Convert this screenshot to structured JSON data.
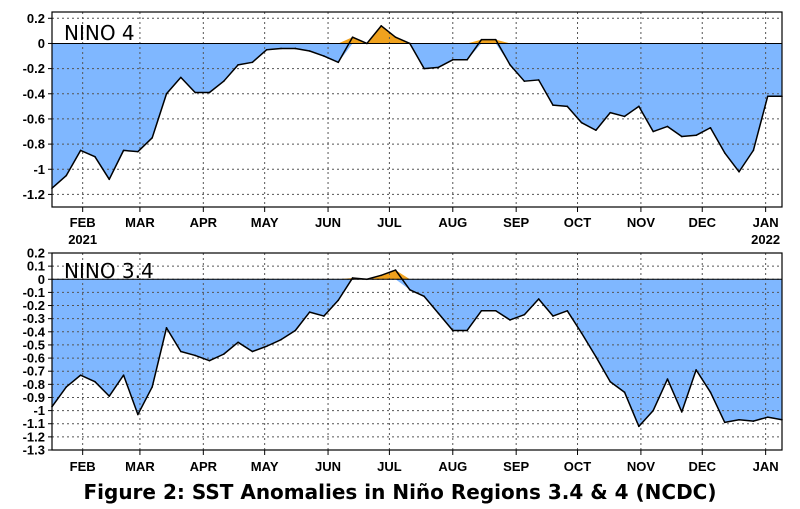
{
  "caption": "Figure 2: SST Anomalies in Niño Regions 3.4 & 4 (NCDC)",
  "colors": {
    "negative_fill": "#7fb7ff",
    "positive_fill": "#f0a21e",
    "line": "#000000",
    "grid": "#555555"
  },
  "chart_data": [
    {
      "type": "area",
      "title": "NINO 4",
      "xlabel": "",
      "ylabel": "",
      "x_ticks": [
        "FEB",
        "MAR",
        "APR",
        "MAY",
        "JUN",
        "JUL",
        "AUG",
        "SEP",
        "OCT",
        "NOV",
        "DEC",
        "JAN"
      ],
      "x_tick_years": {
        "FEB": "2021",
        "JAN": "2022"
      },
      "y_ticks": [
        "0.2",
        "0",
        "-0.2",
        "-0.4",
        "-0.6",
        "-0.8",
        "-1",
        "-1.2"
      ],
      "ylim": [
        -1.3,
        0.25
      ],
      "grid": true,
      "x": [
        "2021-01-17",
        "2021-01-24",
        "2021-01-31",
        "2021-02-07",
        "2021-02-14",
        "2021-02-21",
        "2021-02-28",
        "2021-03-07",
        "2021-03-14",
        "2021-03-21",
        "2021-03-28",
        "2021-04-04",
        "2021-04-11",
        "2021-04-18",
        "2021-04-25",
        "2021-05-02",
        "2021-05-09",
        "2021-05-16",
        "2021-05-23",
        "2021-05-30",
        "2021-06-06",
        "2021-06-13",
        "2021-06-20",
        "2021-06-27",
        "2021-07-04",
        "2021-07-11",
        "2021-07-18",
        "2021-07-25",
        "2021-08-01",
        "2021-08-08",
        "2021-08-15",
        "2021-08-22",
        "2021-08-29",
        "2021-09-05",
        "2021-09-12",
        "2021-09-19",
        "2021-09-26",
        "2021-10-03",
        "2021-10-10",
        "2021-10-17",
        "2021-10-24",
        "2021-10-31",
        "2021-11-07",
        "2021-11-14",
        "2021-11-21",
        "2021-11-28",
        "2021-12-05",
        "2021-12-12",
        "2021-12-19",
        "2021-12-26",
        "2022-01-02",
        "2022-01-09"
      ],
      "values": [
        -1.15,
        -1.05,
        -0.85,
        -0.9,
        -1.08,
        -0.85,
        -0.86,
        -0.75,
        -0.4,
        -0.27,
        -0.39,
        -0.39,
        -0.3,
        -0.17,
        -0.15,
        -0.05,
        -0.04,
        -0.04,
        -0.06,
        -0.1,
        -0.15,
        0.05,
        0.0,
        0.14,
        0.05,
        0.0,
        -0.2,
        -0.19,
        -0.13,
        -0.13,
        0.03,
        0.03,
        -0.17,
        -0.3,
        -0.29,
        -0.49,
        -0.5,
        -0.63,
        -0.69,
        -0.55,
        -0.58,
        -0.5,
        -0.7,
        -0.66,
        -0.74,
        -0.73,
        -0.67,
        -0.87,
        -1.02,
        -0.85,
        -0.42,
        -0.42
      ]
    },
    {
      "type": "area",
      "title": "NINO 3.4",
      "xlabel": "",
      "ylabel": "",
      "x_ticks": [
        "FEB",
        "MAR",
        "APR",
        "MAY",
        "JUN",
        "JUL",
        "AUG",
        "SEP",
        "OCT",
        "NOV",
        "DEC",
        "JAN"
      ],
      "y_ticks": [
        "0.2",
        "0.1",
        "0",
        "-0.1",
        "-0.2",
        "-0.3",
        "-0.4",
        "-0.5",
        "-0.6",
        "-0.7",
        "-0.8",
        "-0.9",
        "-1",
        "-1.1",
        "-1.2",
        "-1.3"
      ],
      "ylim": [
        -1.3,
        0.2
      ],
      "grid": true,
      "x": [
        "2021-01-17",
        "2021-01-24",
        "2021-01-31",
        "2021-02-07",
        "2021-02-14",
        "2021-02-21",
        "2021-02-28",
        "2021-03-07",
        "2021-03-14",
        "2021-03-21",
        "2021-03-28",
        "2021-04-04",
        "2021-04-11",
        "2021-04-18",
        "2021-04-25",
        "2021-05-02",
        "2021-05-09",
        "2021-05-16",
        "2021-05-23",
        "2021-05-30",
        "2021-06-06",
        "2021-06-13",
        "2021-06-20",
        "2021-06-27",
        "2021-07-04",
        "2021-07-11",
        "2021-07-18",
        "2021-07-25",
        "2021-08-01",
        "2021-08-08",
        "2021-08-15",
        "2021-08-22",
        "2021-08-29",
        "2021-09-05",
        "2021-09-12",
        "2021-09-19",
        "2021-09-26",
        "2021-10-03",
        "2021-10-10",
        "2021-10-17",
        "2021-10-24",
        "2021-10-31",
        "2021-11-07",
        "2021-11-14",
        "2021-11-21",
        "2021-11-28",
        "2021-12-05",
        "2021-12-12",
        "2021-12-19",
        "2021-12-26",
        "2022-01-02",
        "2022-01-09"
      ],
      "values": [
        -0.97,
        -0.82,
        -0.73,
        -0.78,
        -0.89,
        -0.73,
        -1.03,
        -0.82,
        -0.37,
        -0.55,
        -0.58,
        -0.62,
        -0.57,
        -0.48,
        -0.55,
        -0.51,
        -0.46,
        -0.39,
        -0.25,
        -0.28,
        -0.16,
        0.01,
        0.0,
        0.03,
        0.07,
        -0.08,
        -0.13,
        -0.26,
        -0.39,
        -0.39,
        -0.24,
        -0.24,
        -0.31,
        -0.27,
        -0.15,
        -0.28,
        -0.24,
        -0.41,
        -0.59,
        -0.78,
        -0.86,
        -1.12,
        -1.0,
        -0.76,
        -1.01,
        -0.69,
        -0.86,
        -1.09,
        -1.07,
        -1.08,
        -1.05,
        -1.07
      ]
    }
  ]
}
